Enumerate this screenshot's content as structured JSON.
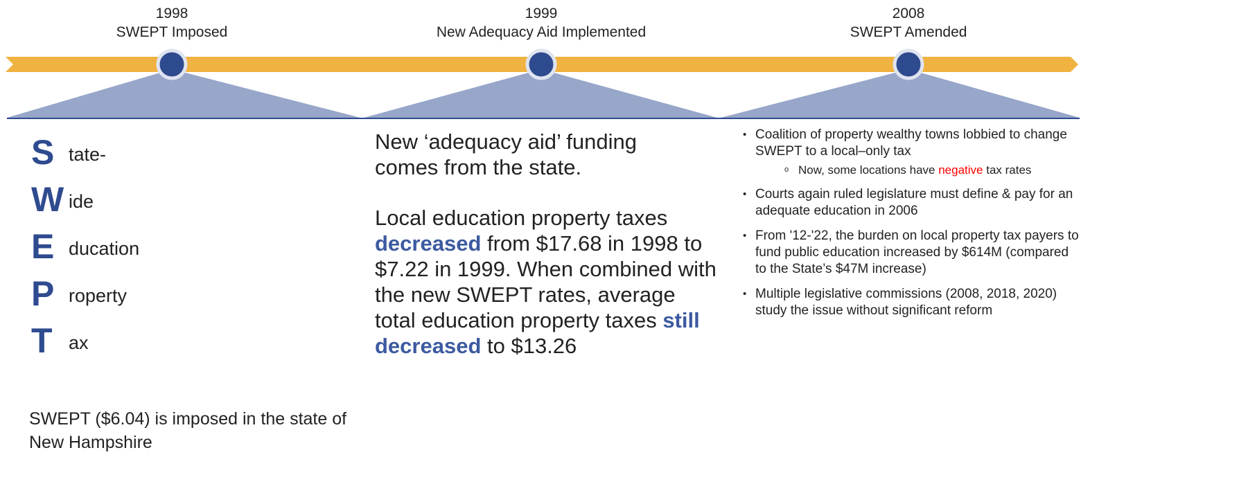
{
  "events": [
    {
      "year": "1998",
      "label": "SWEPT Imposed"
    },
    {
      "year": "1999",
      "label": "New Adequacy Aid Implemented"
    },
    {
      "year": "2008",
      "label": "SWEPT Amended"
    }
  ],
  "acronym": [
    {
      "letter": "S",
      "rest": "tate-"
    },
    {
      "letter": "W",
      "rest": "ide"
    },
    {
      "letter": "E",
      "rest": "ducation"
    },
    {
      "letter": "P",
      "rest": "roperty"
    },
    {
      "letter": "T",
      "rest": "ax"
    }
  ],
  "column1_note": "SWEPT ($6.04) is imposed in the state of New Hampshire",
  "column2": {
    "paragraph1": "New ‘adequacy aid’ funding comes from the state.",
    "paragraph2": [
      "Local education property taxes ",
      "decreased",
      " from $17.68 in 1998 to $7.22 in 1999. When combined with the new SWEPT rates, average total education property taxes ",
      "still decreased",
      " to $13.26"
    ]
  },
  "column3": {
    "bullets": [
      {
        "text": "Coalition of property wealthy towns lobbied to change SWEPT to a local–only tax",
        "sub": [
          "Now, some locations have ",
          "negative",
          " tax rates"
        ]
      },
      {
        "text": "Courts again ruled legislature must define & pay for an adequate education in 2006"
      },
      {
        "text": "From '12-'22, the burden on local property tax payers to fund public education increased by $614M (compared to the State’s $47M increase)"
      },
      {
        "text": "Multiple legislative commissions (2008, 2018, 2020) study the issue without significant reform"
      }
    ]
  }
}
